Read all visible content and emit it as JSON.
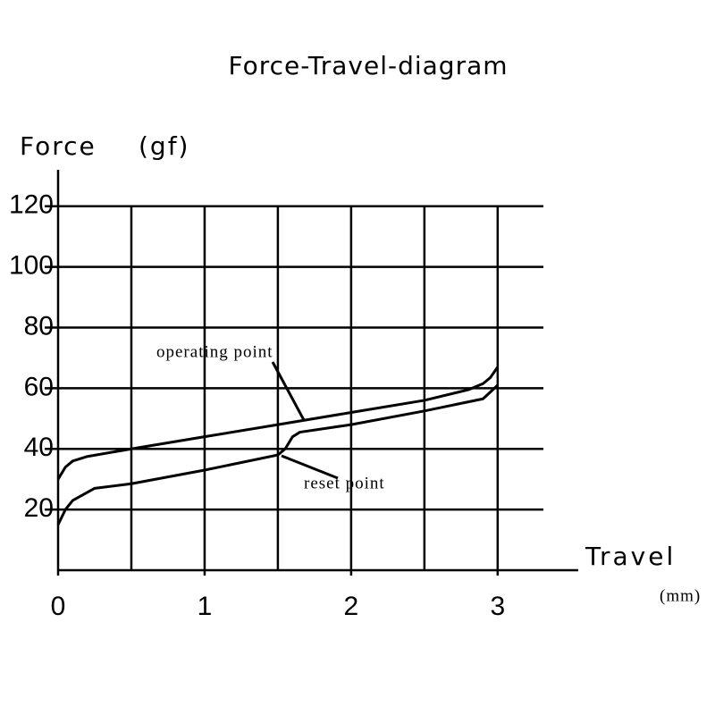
{
  "chart_data": {
    "type": "line",
    "title": "Force-Travel-diagram",
    "ylabel": "Force",
    "yunit": "(gf)",
    "xlabel": "Travel",
    "xunit": "(mm)",
    "xlim": [
      0,
      3.55
    ],
    "ylim": [
      0,
      132
    ],
    "xticks": [
      0,
      1,
      2,
      3
    ],
    "yticks": [
      20,
      40,
      60,
      80,
      100,
      120
    ],
    "xgrid": [
      0.5,
      1,
      1.5,
      2,
      2.5,
      3
    ],
    "grid": true,
    "series": [
      {
        "color": "#000000",
        "x": [
          0,
          0.05,
          0.1,
          0.2,
          0.5,
          1,
          1.5,
          2,
          2.5,
          2.8,
          2.9,
          2.95,
          3
        ],
        "values": [
          30,
          34,
          36,
          37.5,
          40,
          44,
          48,
          52,
          56,
          59.5,
          61.5,
          63.5,
          67
        ]
      },
      {
        "color": "#000000",
        "x": [
          0,
          0.05,
          0.1,
          0.25,
          0.5,
          1,
          1.5,
          1.55,
          1.6,
          1.65,
          2,
          2.5,
          2.9,
          3
        ],
        "values": [
          15,
          20,
          23,
          27,
          28.5,
          33,
          38,
          40,
          44,
          45.5,
          48,
          52.5,
          56.5,
          61
        ]
      }
    ],
    "annotations": [
      "operating point",
      "reset point"
    ]
  }
}
